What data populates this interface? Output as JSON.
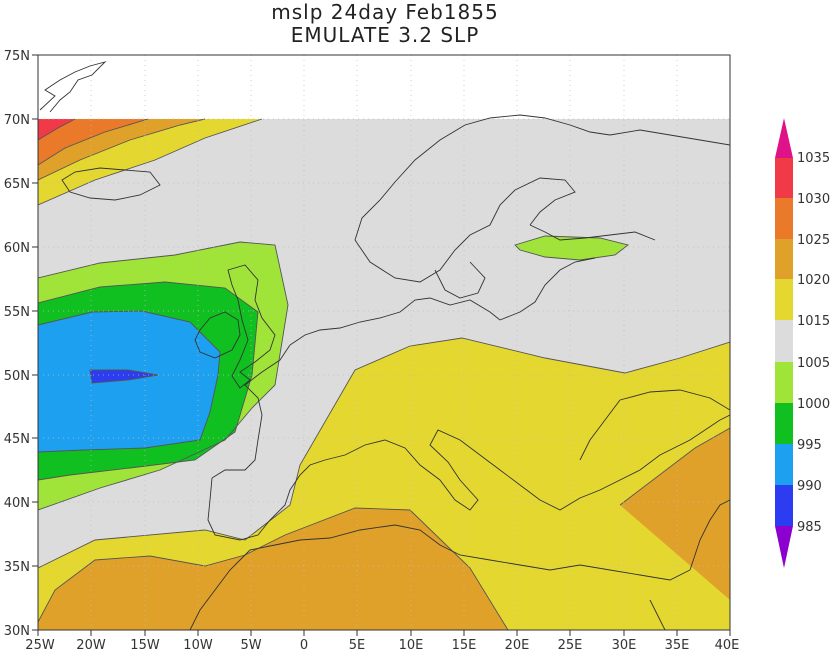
{
  "title": {
    "line1": "mslp 24day Feb1855",
    "line2": "EMULATE 3.2 SLP"
  },
  "lat_ticks": [
    "75N",
    "70N",
    "65N",
    "60N",
    "55N",
    "50N",
    "45N",
    "40N",
    "35N",
    "30N"
  ],
  "lon_ticks": [
    "25W",
    "20W",
    "15W",
    "10W",
    "5W",
    "0",
    "5E",
    "10E",
    "15E",
    "20E",
    "25E",
    "30E",
    "35E",
    "40E"
  ],
  "colorbar": {
    "labels": [
      "1035",
      "1030",
      "1025",
      "1020",
      "1015",
      "1005",
      "1000",
      "995",
      "990",
      "985"
    ],
    "colors": {
      "top_arrow": "#e0128a",
      "c1035": "#f03a48",
      "c1030": "#ea7a2a",
      "c1025": "#e0a12a",
      "c1020": "#e4d830",
      "c1015": "#dcdcdc",
      "c1005": "#a0e43a",
      "c1000": "#10c020",
      "c995": "#1ea0f0",
      "c990": "#2c3cf0",
      "bottom_arrow": "#8c00d0"
    }
  },
  "map": {
    "extent": {
      "lon_min": -25,
      "lon_max": 40,
      "lat_min": 30,
      "lat_max": 75
    },
    "data_top_lat": 70,
    "no_data_above": "70N (white)",
    "features": [
      "high 1030+ near 25W 70N",
      "low below 990 near 18W 50N",
      "weak low 1000-1005 over Baltic near 25E 60N",
      "1020-1025 band over North Africa and eastern Mediterranean"
    ]
  }
}
